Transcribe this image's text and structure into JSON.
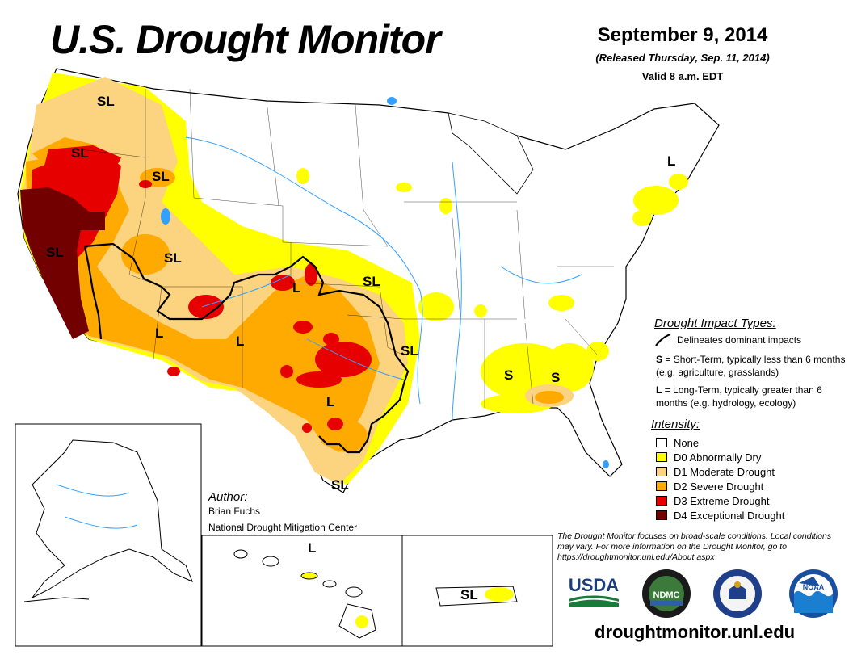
{
  "header": {
    "title": "U.S. Drought Monitor",
    "date": "September 9, 2014",
    "released": "(Released Thursday, Sep. 11, 2014)",
    "valid": "Valid 8 a.m. EDT"
  },
  "colors": {
    "none": "#ffffff",
    "d0": "#ffff00",
    "d1": "#fcd37f",
    "d2": "#ffaa00",
    "d3": "#e60000",
    "d4": "#730000",
    "water": "#33a0ff",
    "boundary": "#000000"
  },
  "map_labels": {
    "sl_wa": "SL",
    "sl_or": "SL",
    "sl_id": "SL",
    "sl_ca": "SL",
    "sl_ut": "SL",
    "l_az": "L",
    "l_nm": "L",
    "l_co": "L",
    "sl_ks": "SL",
    "l_tx": "L",
    "sl_ar": "SL",
    "s_ga": "S",
    "s_sc": "S",
    "sl_tx_coast": "SL",
    "l_ne": "L",
    "l_hi": "L",
    "sl_pr": "SL"
  },
  "impact": {
    "title": "Drought Impact Types:",
    "line_text": "Delineates dominant impacts",
    "s_key": "S",
    "s_text": " = Short-Term, typically less than 6 months (e.g. agriculture, grasslands)",
    "l_key": "L",
    "l_text": " = Long-Term, typically greater than 6 months (e.g. hydrology, ecology)"
  },
  "intensity": {
    "title": "Intensity:",
    "items": [
      {
        "label": "None",
        "color": "#ffffff"
      },
      {
        "label": "D0 Abnormally Dry",
        "color": "#ffff00"
      },
      {
        "label": "D1 Moderate Drought",
        "color": "#fcd37f"
      },
      {
        "label": "D2 Severe Drought",
        "color": "#ffaa00"
      },
      {
        "label": "D3 Extreme Drought",
        "color": "#e60000"
      },
      {
        "label": "D4 Exceptional Drought",
        "color": "#730000"
      }
    ]
  },
  "author": {
    "title": "Author:",
    "name": "Brian Fuchs",
    "org": "National Drought Mitigation Center"
  },
  "disclaimer": "The Drought Monitor focuses on broad-scale conditions. Local conditions may vary. For more information on the Drought Monitor, go to https://droughtmonitor.unl.edu/About.aspx",
  "logos": {
    "usda": "USDA",
    "ndmc": "NDMC",
    "noaa": "NOAA"
  },
  "url": "droughtmonitor.unl.edu"
}
